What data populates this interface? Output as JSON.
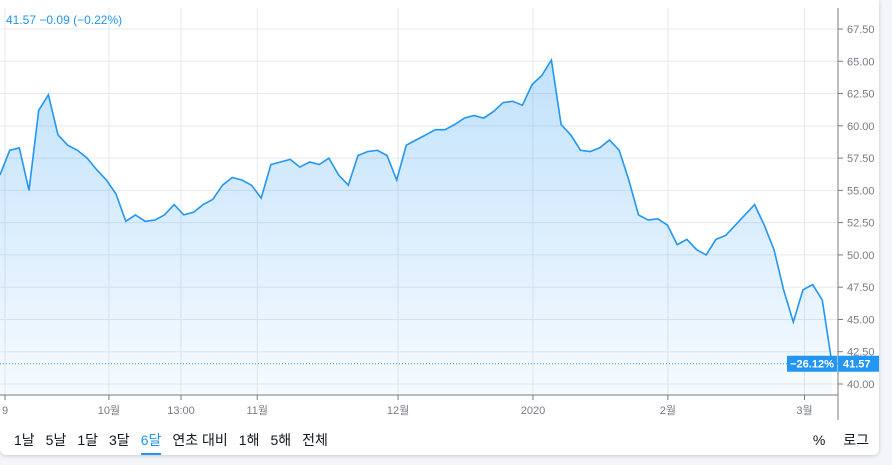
{
  "legend": {
    "price": "41.57",
    "change": "−0.09",
    "change_pct": "(−0.22%)"
  },
  "range_buttons": [
    "1날",
    "5날",
    "1달",
    "3달",
    "6달",
    "연초 대비",
    "1해",
    "5해",
    "전체"
  ],
  "active_range": "6달",
  "right_buttons": {
    "percent": "%",
    "log": "로그"
  },
  "colors": {
    "line": "#2196f3",
    "grid": "#e6e8ef",
    "axis_text": "#787b86"
  },
  "chart_data": {
    "type": "area",
    "title": "",
    "ylim": [
      38.5,
      69
    ],
    "y_ticks": [
      40,
      42.5,
      45,
      47.5,
      50,
      52.5,
      55,
      57.5,
      60,
      62.5,
      65,
      67.5
    ],
    "y_tick_labels": [
      "40.00",
      "42.50",
      "45.00",
      "47.50",
      "50.00",
      "52.50",
      "55.00",
      "57.50",
      "60.00",
      "62.50",
      "65.00",
      "67.50"
    ],
    "x_ticks": [
      {
        "label": "9",
        "pos": 0.006
      },
      {
        "label": "10월",
        "pos": 0.13
      },
      {
        "label": "13:00",
        "pos": 0.216
      },
      {
        "label": "11월",
        "pos": 0.307
      },
      {
        "label": "12월",
        "pos": 0.475
      },
      {
        "label": "2020",
        "pos": 0.636
      },
      {
        "label": "2월",
        "pos": 0.797
      },
      {
        "label": "3월",
        "pos": 0.96
      }
    ],
    "values": [
      56.2,
      58.1,
      58.3,
      55,
      61.2,
      62.4,
      59.3,
      58.5,
      58.1,
      57.5,
      56.6,
      55.8,
      54.7,
      52.6,
      53.1,
      52.6,
      52.7,
      53.1,
      53.9,
      53.1,
      53.3,
      53.9,
      54.3,
      55.4,
      56,
      55.8,
      55.4,
      54.4,
      57,
      57.2,
      57.4,
      56.8,
      57.2,
      57,
      57.5,
      56.2,
      55.4,
      57.7,
      58,
      58.1,
      57.7,
      55.8,
      58.5,
      58.9,
      59.3,
      59.7,
      59.7,
      60.1,
      60.6,
      60.8,
      60.6,
      61.1,
      61.8,
      61.9,
      61.6,
      63.2,
      63.9,
      65.1,
      60.1,
      59.3,
      58.1,
      58,
      58.3,
      58.9,
      58.1,
      55.8,
      53.1,
      52.7,
      52.8,
      52.3,
      50.8,
      51.2,
      50.4,
      50,
      51.2,
      51.5,
      52.3,
      53.1,
      53.9,
      52.3,
      50.4,
      47.3,
      44.8,
      47.3,
      47.7,
      46.5,
      41.57
    ],
    "last_value": "41.57",
    "last_change_pct": "−26.12%"
  }
}
